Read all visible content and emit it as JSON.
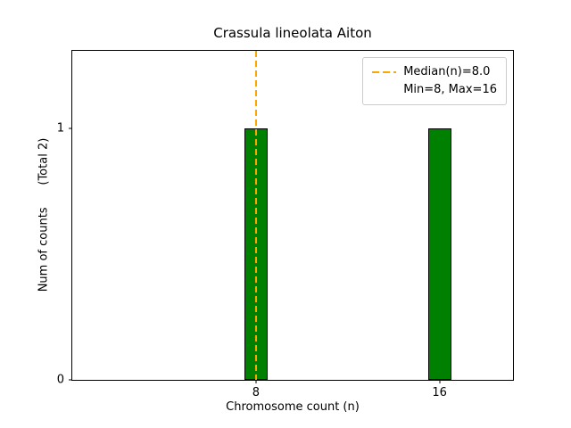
{
  "chart_data": {
    "type": "bar",
    "title": "Crassula lineolata Aiton",
    "xlabel": "Chromosome count (n)",
    "ylabel": "Num of counts      (Total 2)",
    "categories": [
      8,
      16
    ],
    "values": [
      1,
      1
    ],
    "total_counts": 2,
    "min": 8,
    "max": 16,
    "bar_color": "#008000",
    "bar_edge_color": "#000000",
    "bar_width": 1,
    "xlim": [
      0,
      19.2
    ],
    "ylim": [
      0,
      1.31
    ],
    "xticks": [
      8,
      16
    ],
    "yticks": [
      0,
      1
    ],
    "grid": false,
    "median_line": {
      "value": 8.0,
      "color": "#FFA500",
      "style": "dashed"
    },
    "legend": {
      "position": "upper right",
      "entries": [
        "Median(n)=8.0",
        "Min=8, Max=16"
      ]
    }
  }
}
